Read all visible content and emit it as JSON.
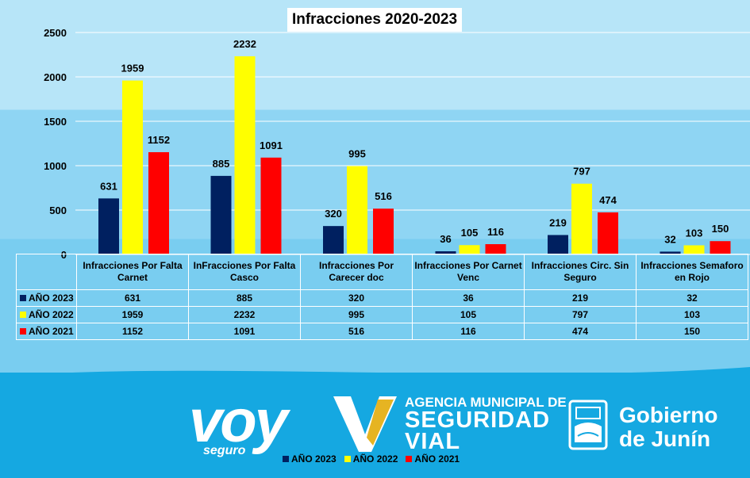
{
  "chart_data": {
    "type": "bar",
    "title": "Infracciones 2020-2023",
    "categories": [
      [
        "Infracciones Por Falta",
        "Carnet"
      ],
      [
        "InFracciones Por Falta",
        "Casco"
      ],
      [
        "Infracciones Por",
        "Carecer doc"
      ],
      [
        "Infracciones Por Carnet",
        "Venc"
      ],
      [
        "Infracciones Circ. Sin",
        "Seguro"
      ],
      [
        "Infracciones Semaforo",
        "en Rojo"
      ]
    ],
    "series": [
      {
        "name": "AÑO 2023",
        "color": "#002060",
        "values": [
          631,
          885,
          320,
          36,
          219,
          32
        ]
      },
      {
        "name": "AÑO 2022",
        "color": "#ffff00",
        "values": [
          1959,
          2232,
          995,
          105,
          797,
          103
        ]
      },
      {
        "name": "AÑO 2021",
        "color": "#ff0000",
        "values": [
          1152,
          1091,
          516,
          116,
          474,
          150
        ]
      }
    ],
    "ylim": [
      0,
      2500
    ],
    "yticks": [
      0,
      500,
      1000,
      1500,
      2000,
      2500
    ],
    "grid": true,
    "legend_placement": "bottom"
  },
  "footer": {
    "voy": "voy",
    "seguro": "seguro",
    "agency_line1": "AGENCIA MUNICIPAL DE",
    "agency_line2": "SEGURIDAD",
    "agency_line3": "VIAL",
    "gob_line1": "Gobierno",
    "gob_line2": "de Junín"
  }
}
